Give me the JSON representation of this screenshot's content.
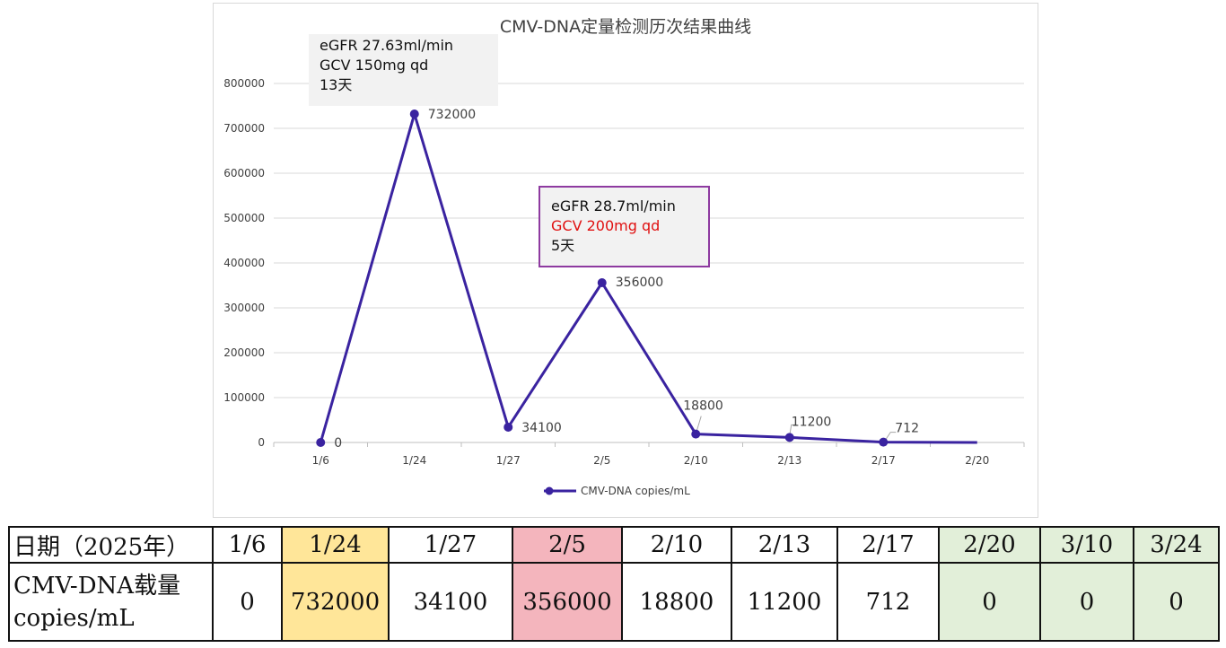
{
  "chart_data": {
    "type": "line",
    "title": "CMV-DNA定量检测历次结果曲线",
    "categories": [
      "1/6",
      "1/24",
      "1/27",
      "2/5",
      "2/10",
      "2/13",
      "2/17",
      "2/20"
    ],
    "series": [
      {
        "name": "CMV-DNA copies/mL",
        "values": [
          0,
          732000,
          34100,
          356000,
          18800,
          11200,
          712,
          0
        ],
        "color": "#3a23a0"
      }
    ],
    "data_labels": [
      "0",
      "732000",
      "34100",
      "356000",
      "18800",
      "11200",
      "712",
      ""
    ],
    "ylim": [
      0,
      800000
    ],
    "yticks": [
      "0",
      "100000",
      "200000",
      "300000",
      "400000",
      "500000",
      "600000",
      "700000",
      "800000"
    ],
    "grid": true,
    "legend_position": "bottom"
  },
  "annotations": [
    {
      "lines": [
        "eGFR 27.63ml/min",
        "GCV 150mg qd",
        "13天"
      ]
    },
    {
      "lines": [
        "eGFR 28.7ml/min",
        "GCV 200mg qd",
        "5天"
      ],
      "highlight_color": "#e01010",
      "border_color": "#8e3aa0"
    }
  ],
  "table": {
    "row1_header": "日期（2025年）",
    "dates": [
      "1/6",
      "1/24",
      "1/27",
      "2/5",
      "2/10",
      "2/13",
      "2/17",
      "2/20",
      "3/10",
      "3/24"
    ],
    "row2_header_line1": "CMV-DNA载量",
    "row2_header_line2": "copies/mL",
    "values": [
      "0",
      "732000",
      "34100",
      "356000",
      "18800",
      "11200",
      "712",
      "0",
      "0",
      "0"
    ],
    "highlight_colors": {
      "yellow": "#ffe699",
      "pink": "#f4b5bd",
      "green": "#e2efd9"
    }
  }
}
